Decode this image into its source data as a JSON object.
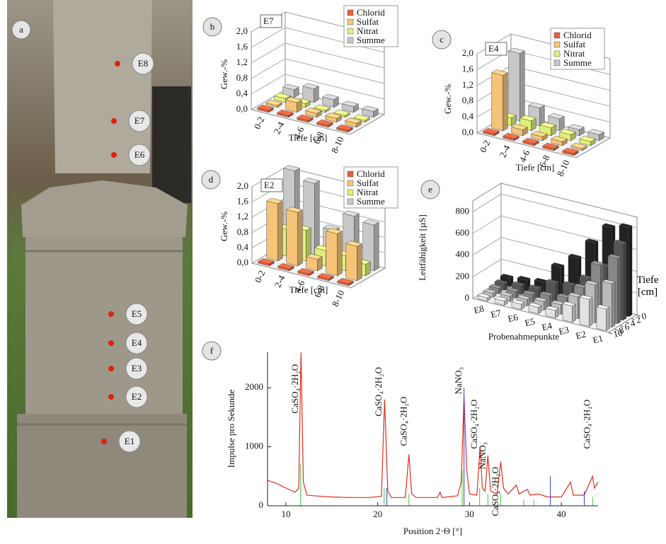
{
  "photo": {
    "panel": "a",
    "points": [
      "E8",
      "E7",
      "E6",
      "E5",
      "E4",
      "E3",
      "E2",
      "E1"
    ]
  },
  "chart_data": [
    {
      "type": "bar3d",
      "panel": "b",
      "inset": "E7",
      "ylabel": "Gew.-%",
      "xlabel": "Tiefe [cm]",
      "categories": [
        "0-2",
        "2-4",
        "4-6",
        "6-8",
        "8-10"
      ],
      "ylim": [
        0,
        2.0
      ],
      "yticks": [
        {
          "value": 0,
          "label": "0,0"
        },
        {
          "value": 0.4,
          "label": "0,4"
        },
        {
          "value": 0.8,
          "label": "0,8"
        },
        {
          "value": 1.2,
          "label": "1,2"
        },
        {
          "value": 1.6,
          "label": "1,6"
        },
        {
          "value": 2.0,
          "label": "2,0"
        }
      ],
      "series": [
        {
          "name": "Chlorid",
          "color": "#e8603c",
          "values": [
            0.05,
            0.05,
            0.05,
            0.05,
            0.05
          ]
        },
        {
          "name": "Sulfat",
          "color": "#f6c478",
          "values": [
            0.05,
            0.25,
            0.1,
            0.1,
            0.1
          ]
        },
        {
          "name": "Nitrat",
          "color": "#dff07a",
          "values": [
            0.1,
            0.1,
            0.05,
            0.05,
            0.05
          ]
        },
        {
          "name": "Summe",
          "color": "#c8c8c8",
          "values": [
            0.2,
            0.35,
            0.2,
            0.15,
            0.15
          ]
        }
      ]
    },
    {
      "type": "bar3d",
      "panel": "c",
      "inset": "E4",
      "ylabel": "Gew.-%",
      "xlabel": "Tiefe [cm]",
      "categories": [
        "0-2",
        "2-4",
        "4-6",
        "6-8",
        "8-10"
      ],
      "ylim": [
        0,
        2.0
      ],
      "yticks": [
        {
          "value": 0,
          "label": "0,0"
        },
        {
          "value": 0.4,
          "label": "0,4"
        },
        {
          "value": 0.8,
          "label": "0,8"
        },
        {
          "value": 1.2,
          "label": "1,2"
        },
        {
          "value": 1.6,
          "label": "1,6"
        },
        {
          "value": 2.0,
          "label": "2,0"
        }
      ],
      "series": [
        {
          "name": "Chlorid",
          "color": "#e8603c",
          "values": [
            0.05,
            0.05,
            0.05,
            0.05,
            0.05
          ]
        },
        {
          "name": "Sulfat",
          "color": "#f6c478",
          "values": [
            1.4,
            0.15,
            0.1,
            0.1,
            0.05
          ]
        },
        {
          "name": "Nitrat",
          "color": "#dff07a",
          "values": [
            0.2,
            0.25,
            0.2,
            0.15,
            0.1
          ]
        },
        {
          "name": "Summe",
          "color": "#c8c8c8",
          "values": [
            1.7,
            0.45,
            0.3,
            0.15,
            0.15
          ]
        }
      ]
    },
    {
      "type": "bar3d",
      "panel": "d",
      "inset": "E2",
      "ylabel": "Gew.-%",
      "xlabel": "Tiefe [cm]",
      "categories": [
        "0-2",
        "2-4",
        "4-6",
        "6-8",
        "8-10"
      ],
      "ylim": [
        0,
        2.0
      ],
      "yticks": [
        {
          "value": 0,
          "label": "0,0"
        },
        {
          "value": 0.4,
          "label": "0,4"
        },
        {
          "value": 0.8,
          "label": "0,8"
        },
        {
          "value": 1.2,
          "label": "1,2"
        },
        {
          "value": 1.6,
          "label": "1,6"
        },
        {
          "value": 2.0,
          "label": "2,0"
        }
      ],
      "series": [
        {
          "name": "Chlorid",
          "color": "#e8603c",
          "values": [
            0.05,
            0.05,
            0.05,
            0.05,
            0.05
          ]
        },
        {
          "name": "Sulfat",
          "color": "#f6c478",
          "values": [
            1.5,
            1.4,
            0.3,
            1.1,
            0.9
          ]
        },
        {
          "name": "Nitrat",
          "color": "#dff07a",
          "values": [
            0.7,
            0.8,
            0.4,
            0.4,
            0.3
          ]
        },
        {
          "name": "Summe",
          "color": "#c8c8c8",
          "values": [
            2.1,
            1.9,
            0.8,
            1.3,
            1.2
          ]
        }
      ]
    },
    {
      "type": "bar3d",
      "panel": "e",
      "ylabel": "Leitfähigkeit [µS]",
      "xlabel": "Probenahmepunkte",
      "zlabel": "Tiefe [cm]",
      "categories": [
        "E8",
        "E7",
        "E6",
        "E5",
        "E4",
        "E3",
        "E2",
        "E1"
      ],
      "ylim": [
        0,
        900
      ],
      "yticks": [
        0,
        200,
        400,
        600,
        800
      ],
      "zlim": [
        0,
        10
      ],
      "zticks": [
        10,
        8,
        6,
        4,
        2,
        0
      ],
      "series": [
        {
          "color": "#222222",
          "values": [
            80,
            100,
            120,
            300,
            420,
            600,
            780,
            820
          ]
        },
        {
          "color": "#555555",
          "values": [
            60,
            80,
            90,
            180,
            200,
            300,
            450,
            700
          ]
        },
        {
          "color": "#888888",
          "values": [
            50,
            60,
            70,
            100,
            120,
            250,
            500,
            600
          ]
        },
        {
          "color": "#bbbbbb",
          "values": [
            40,
            50,
            60,
            80,
            90,
            200,
            350,
            400
          ]
        },
        {
          "color": "#e2e2e2",
          "values": [
            30,
            40,
            50,
            60,
            70,
            150,
            250,
            200
          ]
        }
      ]
    },
    {
      "type": "line",
      "panel": "f",
      "ylabel": "Impulse pro Sekunde",
      "xlabel": "Position 2·Θ [°]",
      "xlim": [
        8,
        44
      ],
      "xticks": [
        10,
        20,
        30,
        40
      ],
      "ylim": [
        0,
        2600
      ],
      "yticks": [
        0,
        1000,
        2000
      ],
      "x": [
        8,
        9,
        10,
        11,
        11.4,
        11.65,
        11.9,
        12.3,
        13,
        15,
        17,
        19,
        20.4,
        20.75,
        21.1,
        21.5,
        23,
        23.4,
        23.7,
        24.2,
        26.5,
        26.8,
        27,
        28.7,
        29.1,
        29.4,
        29.7,
        30,
        30.8,
        31.15,
        31.4,
        31.7,
        32,
        32.3,
        33,
        33.4,
        33.7,
        34.2,
        35.1,
        35.4,
        36.3,
        36.6,
        37.5,
        38.5,
        40,
        41,
        41.3,
        42.5,
        43.4,
        43.6,
        44
      ],
      "series": [
        {
          "color": "#e0301e",
          "values": [
            430,
            380,
            300,
            230,
            300,
            2600,
            400,
            180,
            170,
            150,
            140,
            140,
            160,
            1800,
            250,
            140,
            140,
            870,
            200,
            140,
            140,
            230,
            140,
            170,
            400,
            1850,
            600,
            200,
            180,
            1000,
            300,
            250,
            850,
            250,
            200,
            750,
            300,
            200,
            350,
            200,
            280,
            180,
            200,
            150,
            150,
            400,
            180,
            180,
            500,
            300,
            400
          ]
        }
      ],
      "sticks": [
        {
          "color": "#3cc83c",
          "x": [
            11.6,
            20.7,
            23.4,
            29.2,
            31.1,
            32.0,
            33.4,
            35.9,
            37.0,
            43.4
          ],
          "values": [
            700,
            300,
            200,
            600,
            300,
            200,
            200,
            100,
            100,
            150
          ]
        },
        {
          "color": "#3040e0",
          "x": [
            21.0,
            29.4,
            38.8,
            42.5
          ],
          "values": [
            300,
            2000,
            500,
            250
          ]
        }
      ],
      "annotations": [
        {
          "text": "CaSO₄·2H₂O",
          "x": 11.1,
          "y": 2400
        },
        {
          "text": "CaSO₄·2H₂O",
          "x": 20.2,
          "y": 2350
        },
        {
          "text": "CaSO₄·2H₂O",
          "x": 22.9,
          "y": 1850
        },
        {
          "text": "NaNO₃",
          "x": 28.9,
          "y": 2350
        },
        {
          "text": "CaSO₄·2H₂O",
          "x": 30.6,
          "y": 1800
        },
        {
          "text": "NaNO₃",
          "x": 31.5,
          "y": 1080
        },
        {
          "text": "CaSO₄·2H₂O",
          "x": 32.9,
          "y": 660
        },
        {
          "text": "CaSO₄·2H₂O",
          "x": 42.9,
          "y": 1800
        }
      ]
    }
  ]
}
